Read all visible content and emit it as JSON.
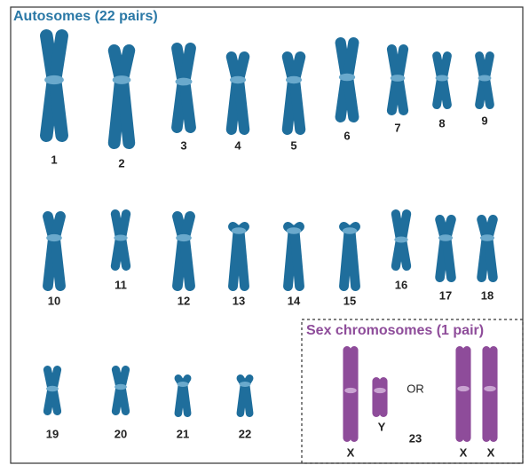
{
  "autosomes": {
    "title": "Autosomes (22 pairs)",
    "labels": [
      "1",
      "2",
      "3",
      "4",
      "5",
      "6",
      "7",
      "8",
      "9",
      "10",
      "11",
      "12",
      "13",
      "14",
      "15",
      "16",
      "17",
      "18",
      "19",
      "20",
      "21",
      "22"
    ]
  },
  "sex_chromosomes": {
    "title": "Sex chromosomes (1 pair)",
    "labels": [
      "X",
      "Y",
      "OR",
      "23",
      "X",
      "X"
    ]
  }
}
